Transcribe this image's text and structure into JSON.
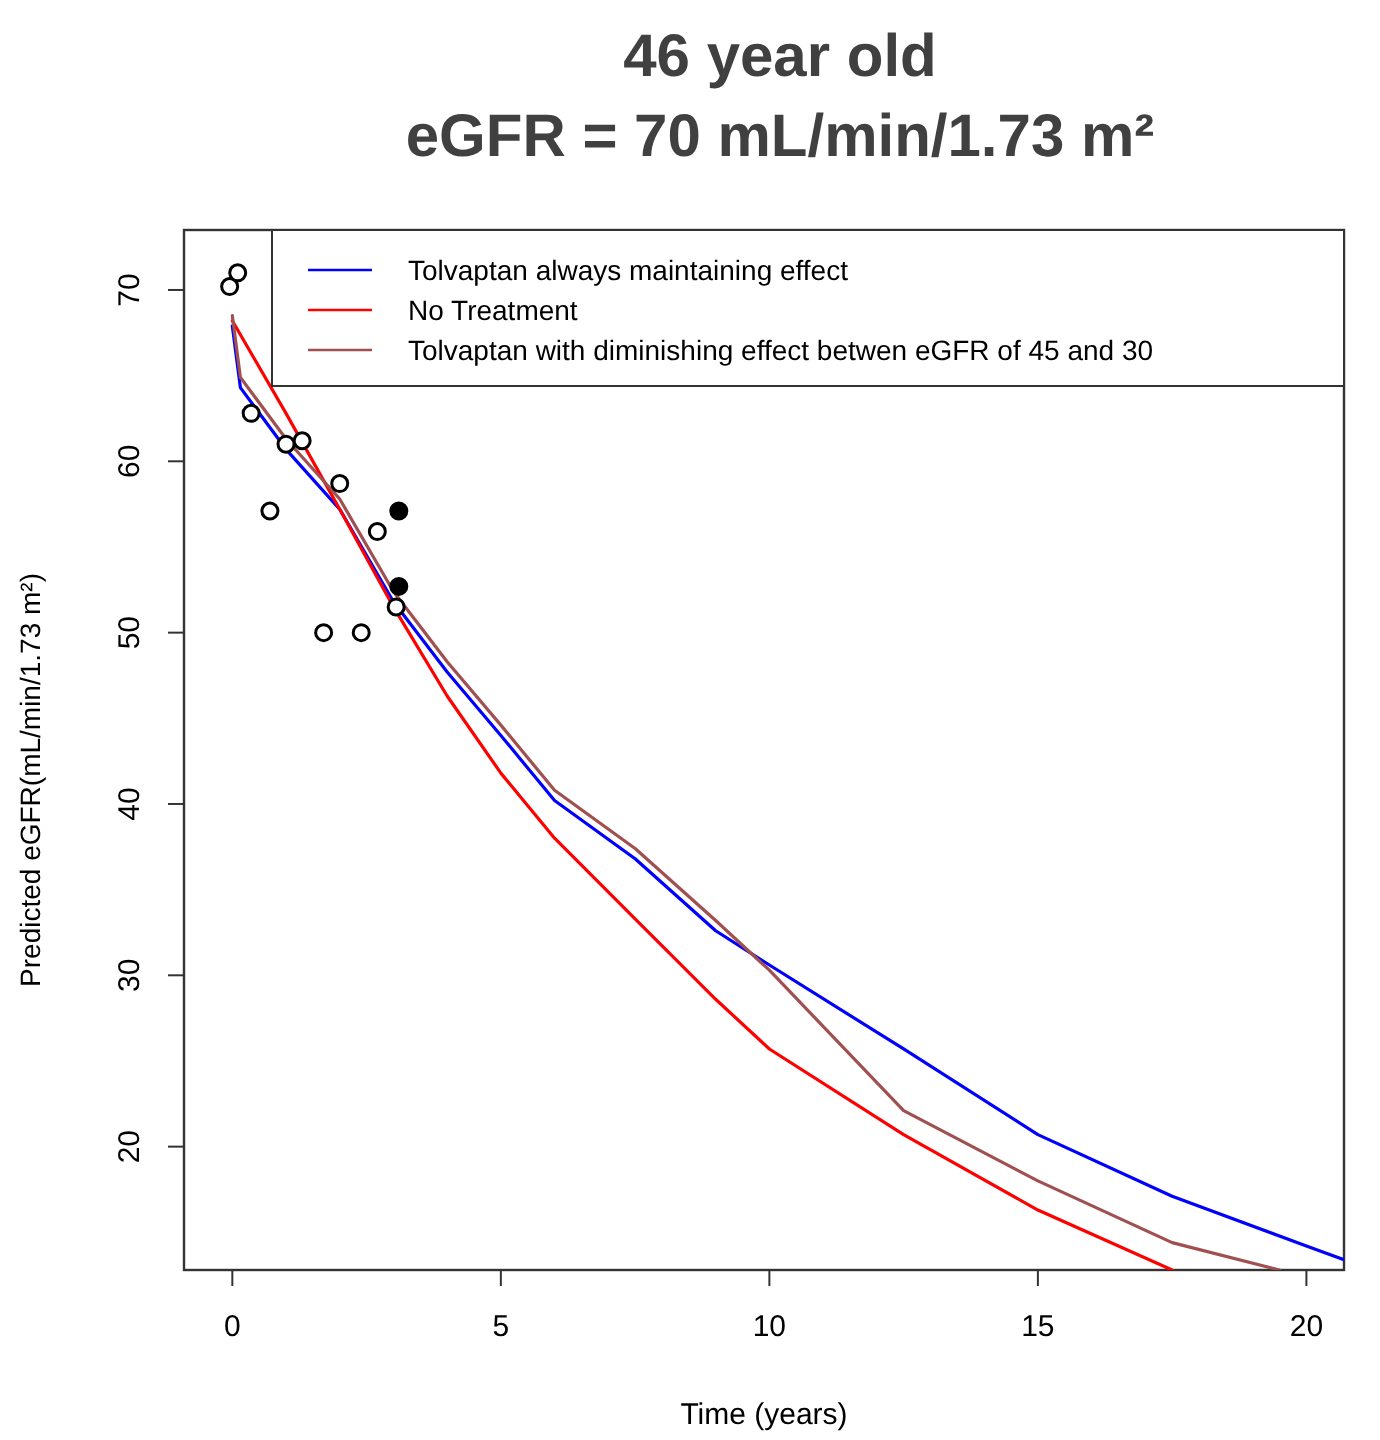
{
  "chart_data": {
    "type": "line",
    "title": "46 year old",
    "subtitle": "eGFR = 70 mL/min/1.73 m²",
    "xlabel": "Time (years)",
    "ylabel": "Predicted eGFR(mL/min/1.73 m²)",
    "xlim": [
      -0.9,
      20.7
    ],
    "ylim": [
      12.8,
      73.5
    ],
    "xticks": [
      0,
      5,
      10,
      15,
      20
    ],
    "yticks": [
      20,
      30,
      40,
      50,
      60,
      70
    ],
    "grid": false,
    "legend": "top right",
    "line_style": "solid",
    "series": [
      {
        "name": "Tolvaptan always maintaining effect",
        "color": "#0000ff",
        "x": [
          0,
          0.15,
          1,
          2,
          3,
          4,
          5,
          6,
          7.5,
          9,
          10,
          12.5,
          15,
          17.5,
          20,
          20.7
        ],
        "values": [
          67.9,
          64.3,
          60.7,
          57.2,
          51.8,
          47.7,
          44,
          40.2,
          36.8,
          32.6,
          30.6,
          25.7,
          20.7,
          17.1,
          14.2,
          13.4
        ]
      },
      {
        "name": "No Treatment",
        "color": "#ff0000",
        "x": [
          0,
          1,
          2,
          3,
          4,
          5,
          6,
          7.5,
          9,
          10,
          12.5,
          15,
          17.5
        ],
        "values": [
          68.2,
          62.8,
          57.2,
          51.5,
          46.3,
          41.8,
          38,
          33.3,
          28.6,
          25.7,
          20.7,
          16.3,
          12.8
        ]
      },
      {
        "name": "Tolvaptan with diminishing effect betwen eGFR of 45 and 30",
        "color": "#a05050",
        "x": [
          0,
          0.15,
          1,
          2,
          3,
          4,
          5,
          6,
          7.5,
          9,
          10,
          12.5,
          15,
          17.5,
          19.5
        ],
        "values": [
          68.5,
          64.9,
          61.3,
          57.8,
          52.4,
          48.3,
          44.6,
          40.8,
          37.4,
          33.2,
          30.3,
          22.1,
          18,
          14.4,
          12.8
        ]
      },
      {
        "color": "#000000",
        "type": "scatter",
        "marker": "circle",
        "x": [
          -0.05,
          0.1,
          0.35,
          1,
          1.3,
          0.7,
          2,
          2.7,
          1.7,
          2.4,
          3.05
        ],
        "values": [
          70.2,
          71,
          62.8,
          61,
          61.2,
          57.1,
          58.7,
          55.9,
          50,
          50,
          51.5
        ]
      },
      {
        "color": "#000000",
        "type": "scatter",
        "marker": "circle",
        "x": [
          3.1,
          3.1
        ],
        "values": [
          57.1,
          52.7
        ]
      }
    ]
  }
}
